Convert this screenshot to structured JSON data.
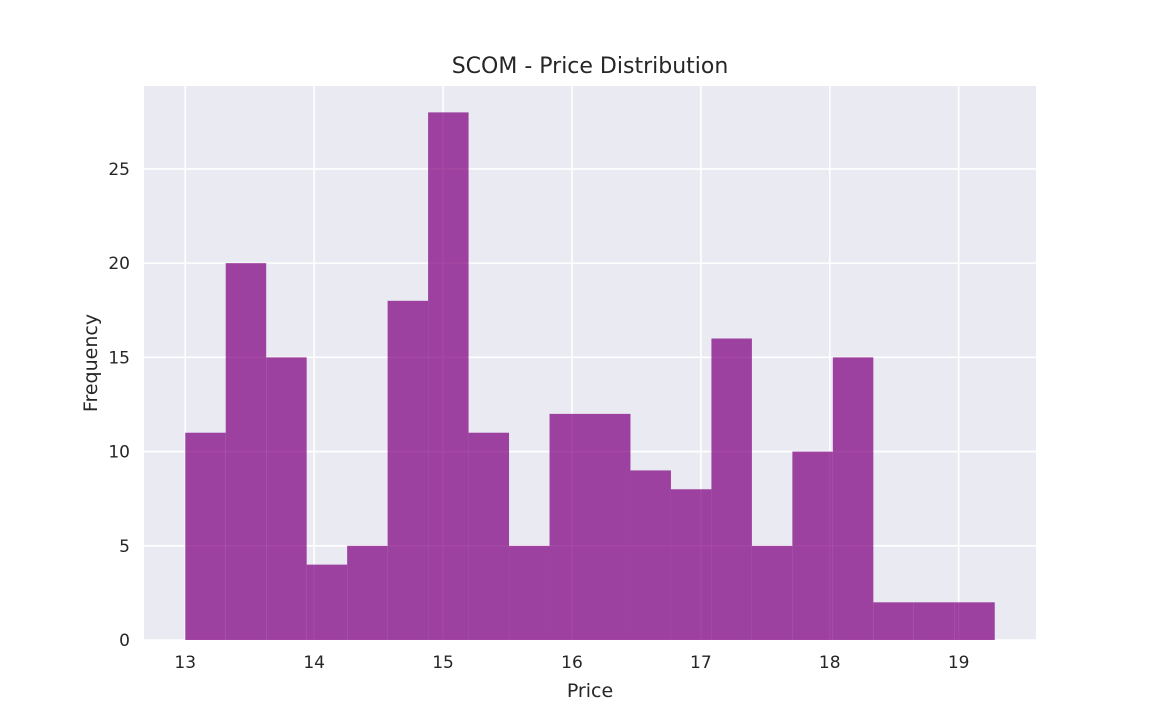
{
  "chart_data": {
    "type": "bar",
    "title": "SCOM - Price Distribution",
    "xlabel": "Price",
    "ylabel": "Frequency",
    "bin_edges": [
      13.0,
      13.314,
      13.628,
      13.942,
      14.256,
      14.57,
      14.884,
      15.198,
      15.512,
      15.826,
      16.14,
      16.454,
      16.768,
      17.082,
      17.396,
      17.71,
      18.024,
      18.338,
      18.652,
      18.966,
      19.28
    ],
    "values": [
      11,
      20,
      15,
      4,
      5,
      18,
      28,
      11,
      5,
      12,
      12,
      9,
      8,
      16,
      5,
      10,
      15,
      2,
      2,
      2
    ],
    "xlim": [
      12.68,
      19.6
    ],
    "ylim": [
      0,
      29.4
    ],
    "x_ticks": [
      "13",
      "14",
      "15",
      "16",
      "17",
      "18",
      "19"
    ],
    "y_ticks": [
      "0",
      "5",
      "10",
      "15",
      "20",
      "25"
    ],
    "grid": true,
    "colors": {
      "bar": "#800080",
      "plot_background": "#eaeaf2",
      "grid": "#ffffff",
      "text": "#262626"
    }
  }
}
